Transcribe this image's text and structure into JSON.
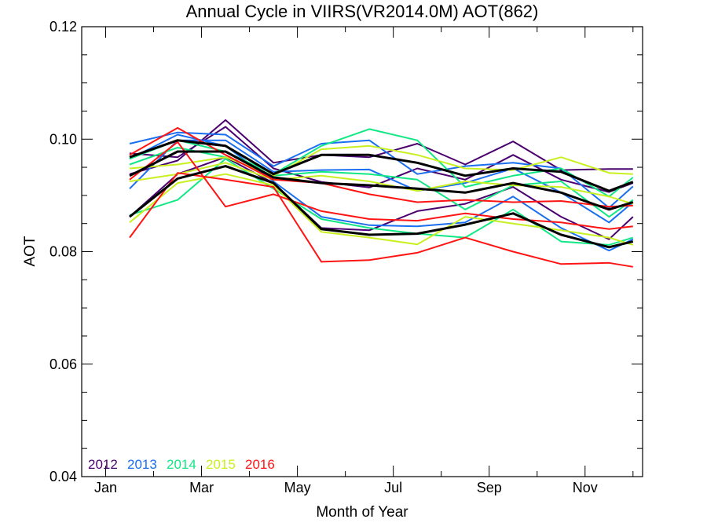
{
  "chart_data": {
    "type": "line",
    "title": "Annual Cycle in VIIRS(VR2014.0M) AOT(862)",
    "xlabel": "Month of Year",
    "ylabel": "AOT",
    "xlim": [
      0.5,
      12.2
    ],
    "ylim": [
      0.04,
      0.12
    ],
    "x_ticks": [
      {
        "value": 1,
        "label": "Jan"
      },
      {
        "value": 3,
        "label": "Mar"
      },
      {
        "value": 5,
        "label": "May"
      },
      {
        "value": 7,
        "label": "Jul"
      },
      {
        "value": 9,
        "label": "Sep"
      },
      {
        "value": 11,
        "label": "Nov"
      }
    ],
    "y_ticks": [
      {
        "value": 0.04,
        "label": "0.04"
      },
      {
        "value": 0.06,
        "label": "0.06"
      },
      {
        "value": 0.08,
        "label": "0.08"
      },
      {
        "value": 0.1,
        "label": "0.10"
      },
      {
        "value": 0.12,
        "label": "0.12"
      }
    ],
    "x": [
      1.5,
      2.5,
      3.5,
      4.5,
      5.5,
      6.5,
      7.5,
      8.5,
      9.5,
      10.5,
      11.5,
      12.0
    ],
    "legend": [
      {
        "label": "2012",
        "color": "#4b0070"
      },
      {
        "label": "2013",
        "color": "#1a6ef0"
      },
      {
        "label": "2014",
        "color": "#11e884"
      },
      {
        "label": "2015",
        "color": "#c8f020"
      },
      {
        "label": "2016",
        "color": "#ff1414"
      }
    ],
    "legend_position": "bottom-left",
    "series": [
      {
        "color": "#4b0070",
        "width": 2,
        "values": [
          0.0938,
          0.0962,
          0.1034,
          0.0958,
          0.0972,
          0.0968,
          0.0992,
          0.0955,
          0.0996,
          0.0945,
          0.0947,
          0.0947
        ]
      },
      {
        "color": "#4b0070",
        "width": 2,
        "values": [
          0.0975,
          0.0968,
          0.1022,
          0.0948,
          0.0924,
          0.0914,
          0.0948,
          0.0928,
          0.0972,
          0.0928,
          0.0906,
          0.0922
        ]
      },
      {
        "color": "#4b0070",
        "width": 2,
        "values": [
          0.0862,
          0.0938,
          0.0968,
          0.0922,
          0.0842,
          0.0838,
          0.0872,
          0.0885,
          0.0915,
          0.0862,
          0.0822,
          0.0862
        ]
      },
      {
        "color": "#1a6ef0",
        "width": 2,
        "values": [
          0.0992,
          0.1012,
          0.1008,
          0.0952,
          0.0992,
          0.0998,
          0.0938,
          0.0952,
          0.0958,
          0.0948,
          0.0878,
          0.0916
        ]
      },
      {
        "color": "#1a6ef0",
        "width": 2,
        "values": [
          0.0912,
          0.0998,
          0.0998,
          0.0942,
          0.0945,
          0.0946,
          0.0908,
          0.0922,
          0.0948,
          0.0905,
          0.0852,
          0.0888
        ]
      },
      {
        "color": "#1a6ef0",
        "width": 2,
        "values": [
          0.0965,
          0.1008,
          0.0988,
          0.0925,
          0.0862,
          0.0847,
          0.0845,
          0.0852,
          0.0898,
          0.0842,
          0.0802,
          0.0822
        ]
      },
      {
        "color": "#11e884",
        "width": 2,
        "values": [
          0.0965,
          0.0998,
          0.0978,
          0.0938,
          0.0988,
          0.1018,
          0.0998,
          0.0915,
          0.0935,
          0.0948,
          0.0898,
          0.0932
        ]
      },
      {
        "color": "#11e884",
        "width": 2,
        "values": [
          0.0955,
          0.0985,
          0.0968,
          0.0935,
          0.0942,
          0.0938,
          0.0928,
          0.0875,
          0.0918,
          0.0925,
          0.0862,
          0.0892
        ]
      },
      {
        "color": "#11e884",
        "width": 2,
        "values": [
          0.0865,
          0.0892,
          0.0965,
          0.0912,
          0.0858,
          0.0842,
          0.0832,
          0.0825,
          0.0875,
          0.0818,
          0.0812,
          0.0825
        ]
      },
      {
        "color": "#c8f020",
        "width": 2,
        "values": [
          0.0948,
          0.0955,
          0.0968,
          0.0935,
          0.0982,
          0.0988,
          0.0972,
          0.0948,
          0.0945,
          0.0968,
          0.094,
          0.0938
        ]
      },
      {
        "color": "#c8f020",
        "width": 2,
        "values": [
          0.0925,
          0.0938,
          0.0958,
          0.0928,
          0.0935,
          0.0925,
          0.0908,
          0.0925,
          0.0918,
          0.0915,
          0.0898,
          0.0885
        ]
      },
      {
        "color": "#c8f020",
        "width": 2,
        "values": [
          0.0852,
          0.0922,
          0.0938,
          0.0918,
          0.0835,
          0.0825,
          0.0813,
          0.0862,
          0.085,
          0.0838,
          0.0825,
          0.0812
        ]
      },
      {
        "color": "#ff1414",
        "width": 2,
        "values": [
          0.0972,
          0.102,
          0.0972,
          0.0928,
          0.0922,
          0.0902,
          0.0888,
          0.0892,
          0.0888,
          0.089,
          0.088,
          0.0882
        ]
      },
      {
        "color": "#ff1414",
        "width": 2,
        "values": [
          0.0928,
          0.0995,
          0.088,
          0.0902,
          0.0872,
          0.0858,
          0.0855,
          0.0868,
          0.0858,
          0.0852,
          0.084,
          0.0845
        ]
      },
      {
        "color": "#ff1414",
        "width": 2,
        "values": [
          0.0825,
          0.094,
          0.0928,
          0.0915,
          0.0782,
          0.0785,
          0.0798,
          0.0825,
          0.08,
          0.0778,
          0.078,
          0.0773
        ]
      },
      {
        "color": "#000000",
        "width": 3,
        "values": [
          0.0968,
          0.0998,
          0.0988,
          0.0938,
          0.0972,
          0.0972,
          0.0958,
          0.0935,
          0.0948,
          0.0942,
          0.0908,
          0.0924
        ]
      },
      {
        "color": "#000000",
        "width": 3,
        "values": [
          0.0935,
          0.0978,
          0.0978,
          0.0932,
          0.0922,
          0.0918,
          0.0912,
          0.0905,
          0.0922,
          0.0905,
          0.0875,
          0.0888
        ]
      },
      {
        "color": "#000000",
        "width": 3,
        "values": [
          0.0862,
          0.093,
          0.0952,
          0.0922,
          0.084,
          0.083,
          0.0832,
          0.0848,
          0.0868,
          0.083,
          0.0808,
          0.0818
        ]
      }
    ]
  }
}
